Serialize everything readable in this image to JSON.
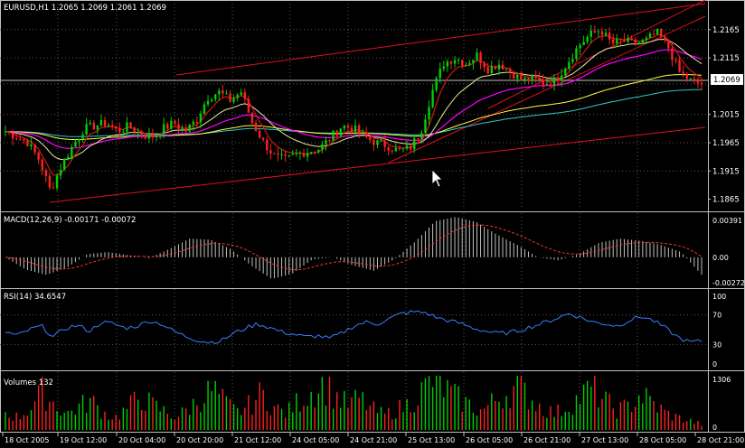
{
  "main_panel": {
    "header": "EURUSD,H1  1.2065 1.2069 1.2061 1.2069",
    "price_ticks": [
      "1.2165",
      "1.2115",
      "1.2069",
      "1.2015",
      "1.1965",
      "1.1915",
      "1.1865"
    ],
    "current_price": "1.2069"
  },
  "macd_panel": {
    "header": "MACD(12,26,9) -0.00171 -0.00072",
    "ticks": [
      "0.00391",
      "0.00",
      "-0.00272"
    ]
  },
  "rsi_panel": {
    "header": "RSI(14) 34.6547",
    "ticks": [
      "100",
      "70",
      "30",
      "0"
    ]
  },
  "volume_panel": {
    "header": "Volumes 132",
    "ticks": [
      "1306",
      "0"
    ]
  },
  "time_axis": {
    "labels": [
      "18 Oct 2005",
      "19 Oct 12:00",
      "20 Oct 04:00",
      "20 Oct 20:00",
      "21 Oct 12:00",
      "24 Oct 05:00",
      "24 Oct 21:00",
      "25 Oct 13:00",
      "26 Oct 05:00",
      "26 Oct 21:00",
      "27 Oct 13:00",
      "28 Oct 05:00",
      "28 Oct 21:00"
    ]
  },
  "colors": {
    "bull_candle": "#00d000",
    "bear_candle": "#ff2020",
    "trend_lines": "#e01020",
    "ma_fast": "#d01818",
    "ma_medium": "#e8e8a0",
    "ma_slow": "#ff00ff",
    "ma_yellow": "#ffff40",
    "ma_cyan": "#30c8c8",
    "rsi_line": "#3a7cff",
    "macd_histogram": "#c0c0c0",
    "macd_signal": "#ff3030"
  },
  "chart_data": {
    "type": "candlestick",
    "symbol": "EURUSD",
    "timeframe": "H1",
    "price_range": [
      1.185,
      1.2195
    ],
    "close_path": [
      1.1985,
      1.1975,
      1.1965,
      1.1935,
      1.188,
      1.1925,
      1.196,
      1.199,
      1.1995,
      1.2,
      1.1985,
      1.1995,
      1.198,
      1.1975,
      1.199,
      1.2,
      1.1985,
      1.2005,
      1.2045,
      1.2055,
      1.204,
      1.2055,
      1.2,
      1.1965,
      1.194,
      1.1935,
      1.1945,
      1.195,
      1.1955,
      1.1975,
      1.1995,
      1.199,
      1.1975,
      1.1965,
      1.196,
      1.195,
      1.1955,
      1.1985,
      1.2055,
      1.2105,
      1.2115,
      1.2105,
      1.212,
      1.2095,
      1.2105,
      1.209,
      1.2075,
      1.2078,
      1.207,
      1.2075,
      1.2105,
      1.2135,
      1.2155,
      1.2165,
      1.214,
      1.2145,
      1.214,
      1.2145,
      1.216,
      1.2135,
      1.209,
      1.2075,
      1.2069
    ],
    "macd_range": [
      -0.00272,
      0.00391
    ],
    "macd_path": [
      0.0,
      -0.0012,
      -0.0017,
      -0.001,
      0.0003,
      0.0005,
      0.0002,
      -0.0001,
      0.0008,
      0.0018,
      0.0017,
      0.0008,
      -0.0008,
      -0.0021,
      -0.0016,
      -0.0002,
      0.0,
      -0.0008,
      -0.0013,
      -0.0002,
      0.0015,
      0.0035,
      0.0039,
      0.0034,
      0.0022,
      0.0012,
      0.0,
      -0.0003,
      0.0003,
      0.0014,
      0.0018,
      0.0016,
      0.0012,
      0.0005,
      -0.0017
    ],
    "rsi_range": [
      0,
      100
    ],
    "rsi_path": [
      47,
      42,
      50,
      55,
      40,
      52,
      56,
      48,
      60,
      58,
      52,
      55,
      62,
      58,
      48,
      41,
      36,
      33,
      35,
      45,
      52,
      58,
      53,
      47,
      44,
      40,
      42,
      38,
      45,
      55,
      60,
      58,
      65,
      72,
      74,
      73,
      66,
      62,
      58,
      52,
      48,
      45,
      46,
      50,
      55,
      60,
      66,
      72,
      66,
      60,
      58,
      55,
      63,
      68,
      62,
      52,
      40,
      33,
      34.65
    ],
    "volume_range": [
      0,
      1306
    ],
    "volume_path": [
      420,
      300,
      520,
      900,
      640,
      380,
      560,
      700,
      420,
      300,
      520,
      820,
      600,
      450,
      300,
      520,
      760,
      980,
      640,
      420,
      600,
      880,
      540,
      400,
      700,
      900,
      1100,
      820,
      600,
      760,
      500,
      360,
      480,
      620,
      900,
      1200,
      980,
      760,
      600,
      450,
      700,
      880,
      1050,
      760,
      520,
      400,
      560,
      780,
      1000,
      720,
      480,
      560,
      860,
      640,
      420,
      300,
      220,
      132
    ]
  }
}
